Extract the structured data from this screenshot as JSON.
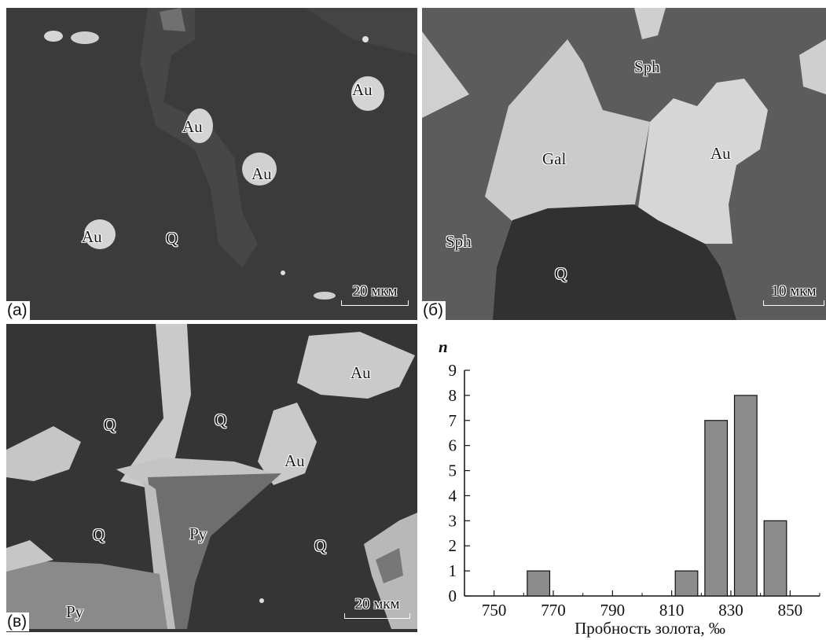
{
  "panels": {
    "a": {
      "label": "(а)",
      "scale": "20 мкм",
      "minerals": [
        "Au",
        "Au",
        "Au",
        "Au",
        "Q"
      ]
    },
    "b": {
      "label": "(б)",
      "scale": "10 мкм",
      "minerals": [
        "Sph",
        "Gal",
        "Au",
        "Sph",
        "Q"
      ]
    },
    "c": {
      "label": "(в)",
      "scale": "20 мкм",
      "minerals": [
        "Au",
        "Q",
        "Q",
        "Au",
        "Q",
        "Py",
        "Q",
        "Py"
      ]
    }
  },
  "chart_data": {
    "type": "bar",
    "xlabel": "Пробность золота, ‰",
    "ylabel": "n",
    "x_ticks": [
      750,
      770,
      790,
      810,
      830,
      850
    ],
    "y_ticks": [
      0,
      1,
      2,
      3,
      4,
      5,
      6,
      7,
      8,
      9
    ],
    "xlim": [
      740,
      860
    ],
    "ylim": [
      0,
      9
    ],
    "bar_color": "#8c8c8c",
    "bars": [
      {
        "x": 765,
        "value": 1
      },
      {
        "x": 815,
        "value": 1
      },
      {
        "x": 825,
        "value": 7
      },
      {
        "x": 835,
        "value": 8
      },
      {
        "x": 845,
        "value": 3
      }
    ]
  }
}
